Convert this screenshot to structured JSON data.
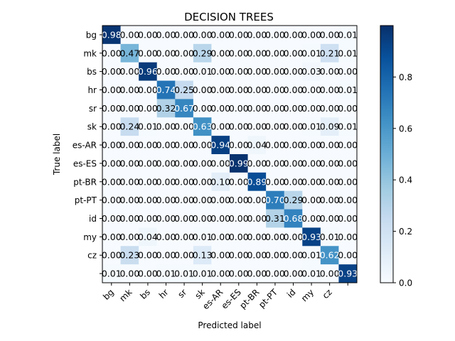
{
  "chart_data": {
    "type": "heatmap",
    "title": "DECISION TREES",
    "xlabel": "Predicted label",
    "ylabel": "True label",
    "x_categories": [
      "bg",
      "mk",
      "bs",
      "hr",
      "sr",
      "sk",
      "es-AR",
      "es-ES",
      "pt-BR",
      "pt-PT",
      "id",
      "my",
      "cz",
      ""
    ],
    "y_categories": [
      "bg",
      "mk",
      "bs",
      "hr",
      "sr",
      "sk",
      "es-AR",
      "es-ES",
      "pt-BR",
      "pt-PT",
      "id",
      "my",
      "cz",
      ""
    ],
    "matrix": [
      [
        0.98,
        0.0,
        0.0,
        0.0,
        0.0,
        0.0,
        0.0,
        0.0,
        0.0,
        0.0,
        0.0,
        0.0,
        0.0,
        0.01
      ],
      [
        0.0,
        0.47,
        0.0,
        0.0,
        0.0,
        0.29,
        0.0,
        0.0,
        0.0,
        0.0,
        0.0,
        0.01,
        0.21,
        0.01
      ],
      [
        0.0,
        0.0,
        0.96,
        0.0,
        0.0,
        0.01,
        0.0,
        0.0,
        0.0,
        0.0,
        0.0,
        0.03,
        0.0,
        0.0
      ],
      [
        0.0,
        0.0,
        0.0,
        0.74,
        0.25,
        0.0,
        0.0,
        0.0,
        0.0,
        0.0,
        0.0,
        0.0,
        0.0,
        0.01
      ],
      [
        0.0,
        0.0,
        0.0,
        0.32,
        0.67,
        0.0,
        0.0,
        0.0,
        0.0,
        0.0,
        0.0,
        0.0,
        0.0,
        0.0
      ],
      [
        0.0,
        0.24,
        0.01,
        0.0,
        0.0,
        0.63,
        0.0,
        0.0,
        0.0,
        0.0,
        0.0,
        0.01,
        0.09,
        0.01
      ],
      [
        0.0,
        0.0,
        0.0,
        0.0,
        0.0,
        0.0,
        0.94,
        0.0,
        0.04,
        0.0,
        0.0,
        0.0,
        0.0,
        0.0
      ],
      [
        0.0,
        0.0,
        0.0,
        0.0,
        0.0,
        0.0,
        0.0,
        0.99,
        0.0,
        0.0,
        0.0,
        0.0,
        0.0,
        0.0
      ],
      [
        0.0,
        0.0,
        0.0,
        0.0,
        0.0,
        0.0,
        0.1,
        0.0,
        0.89,
        0.0,
        0.0,
        0.0,
        0.0,
        0.0
      ],
      [
        0.0,
        0.0,
        0.0,
        0.0,
        0.0,
        0.0,
        0.0,
        0.0,
        0.0,
        0.7,
        0.29,
        0.0,
        0.0,
        0.0
      ],
      [
        0.0,
        0.0,
        0.0,
        0.0,
        0.0,
        0.0,
        0.0,
        0.0,
        0.0,
        0.31,
        0.68,
        0.0,
        0.0,
        0.0
      ],
      [
        0.0,
        0.0,
        0.04,
        0.0,
        0.0,
        0.01,
        0.0,
        0.0,
        0.0,
        0.0,
        0.0,
        0.93,
        0.01,
        0.0
      ],
      [
        0.0,
        0.23,
        0.0,
        0.0,
        0.0,
        0.13,
        0.0,
        0.0,
        0.0,
        0.0,
        0.0,
        0.01,
        0.62,
        0.0
      ],
      [
        0.01,
        0.0,
        0.0,
        0.01,
        0.01,
        0.01,
        0.0,
        0.0,
        0.0,
        0.0,
        0.0,
        0.01,
        0.0,
        0.93
      ]
    ],
    "colorbar": {
      "range": [
        0.0,
        1.0
      ],
      "ticks": [
        "0.0",
        "0.2",
        "0.4",
        "0.6",
        "0.8"
      ],
      "tick_values": [
        0.0,
        0.2,
        0.4,
        0.6,
        0.8
      ]
    },
    "colormap": "Blues",
    "colormap_stops": [
      "#f7fbff",
      "#deebf7",
      "#c6dbef",
      "#9ecae1",
      "#6baed6",
      "#4292c6",
      "#2171b5",
      "#08519c",
      "#08306b"
    ],
    "grid": false,
    "legend": "colorbar-right"
  }
}
